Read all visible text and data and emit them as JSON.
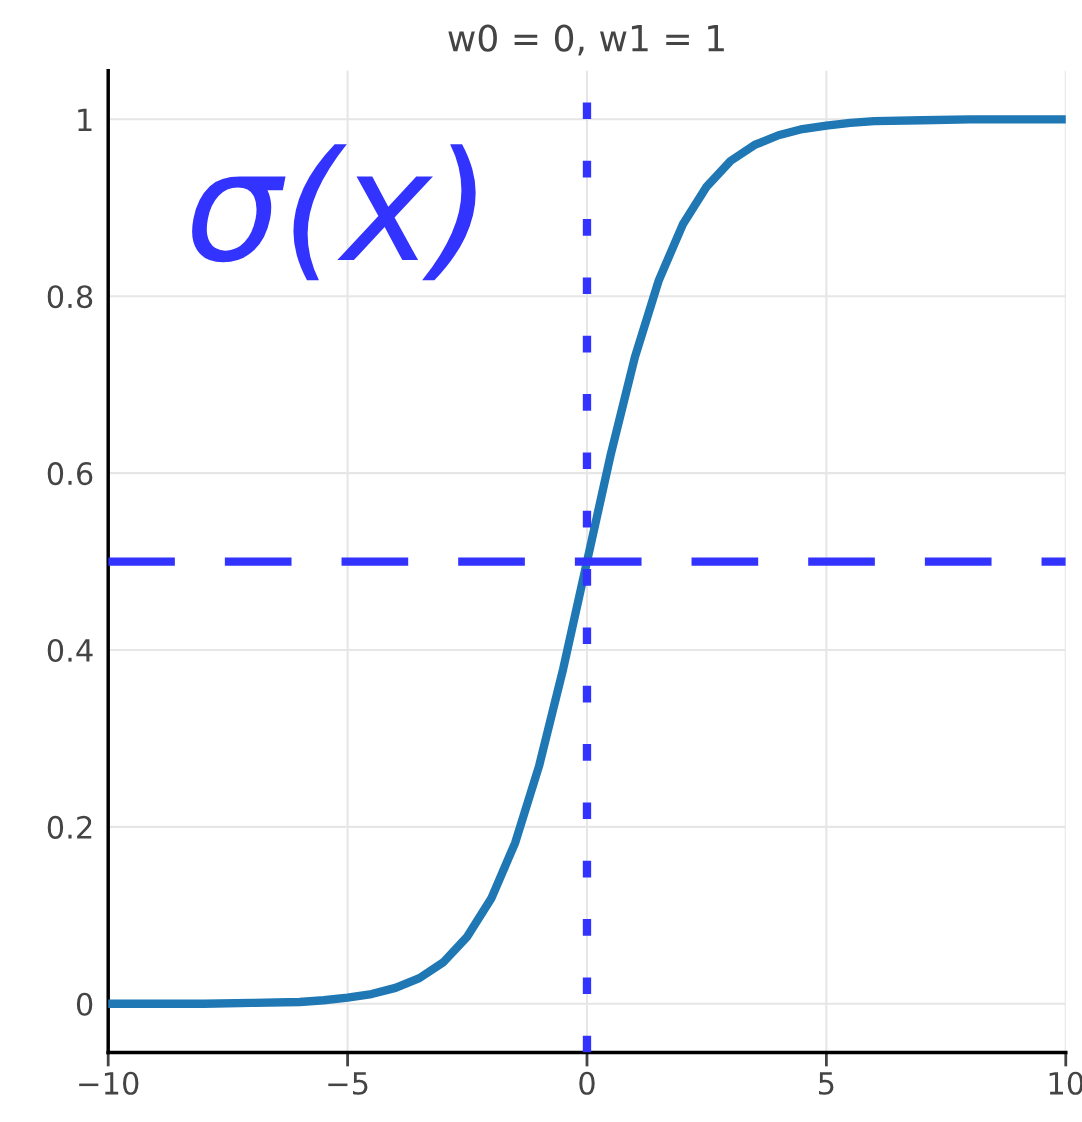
{
  "chart_data": {
    "type": "line",
    "title": "w0 = 0, w1 = 1",
    "x": [
      -10,
      -9,
      -8,
      -7,
      -6,
      -5.5,
      -5,
      -4.5,
      -4,
      -3.5,
      -3,
      -2.5,
      -2,
      -1.5,
      -1,
      -0.5,
      0,
      0.5,
      1,
      1.5,
      2,
      2.5,
      3,
      3.5,
      4,
      4.5,
      5,
      5.5,
      6,
      7,
      8,
      9,
      10
    ],
    "series": [
      {
        "color": "#1f77b4",
        "values": [
          0.0,
          0.0,
          0.0,
          0.001,
          0.002,
          0.004,
          0.007,
          0.011,
          0.018,
          0.029,
          0.047,
          0.076,
          0.119,
          0.182,
          0.269,
          0.378,
          0.5,
          0.622,
          0.731,
          0.818,
          0.881,
          0.924,
          0.953,
          0.971,
          0.982,
          0.989,
          0.993,
          0.996,
          0.998,
          0.999,
          1.0,
          1.0,
          1.0
        ]
      }
    ],
    "xlim": [
      -10,
      10
    ],
    "xticks": [
      {
        "value": -10,
        "label": "−10"
      },
      {
        "value": -5,
        "label": "−5"
      },
      0,
      5,
      10
    ],
    "ylim": [
      -0.055,
      1.055
    ],
    "yticks": [
      0,
      0.2,
      0.4,
      0.6,
      0.8,
      1
    ],
    "grid": true,
    "marker": "none",
    "line_style": "solid",
    "ref_lines": [
      {
        "axis": "y",
        "value": 0.5,
        "color": "#3333ff",
        "line_style": "dashed"
      },
      {
        "axis": "x",
        "value": 0,
        "color": "#3333ff",
        "line_style": "dotted"
      }
    ],
    "annotations": [
      "σ(x)"
    ]
  }
}
